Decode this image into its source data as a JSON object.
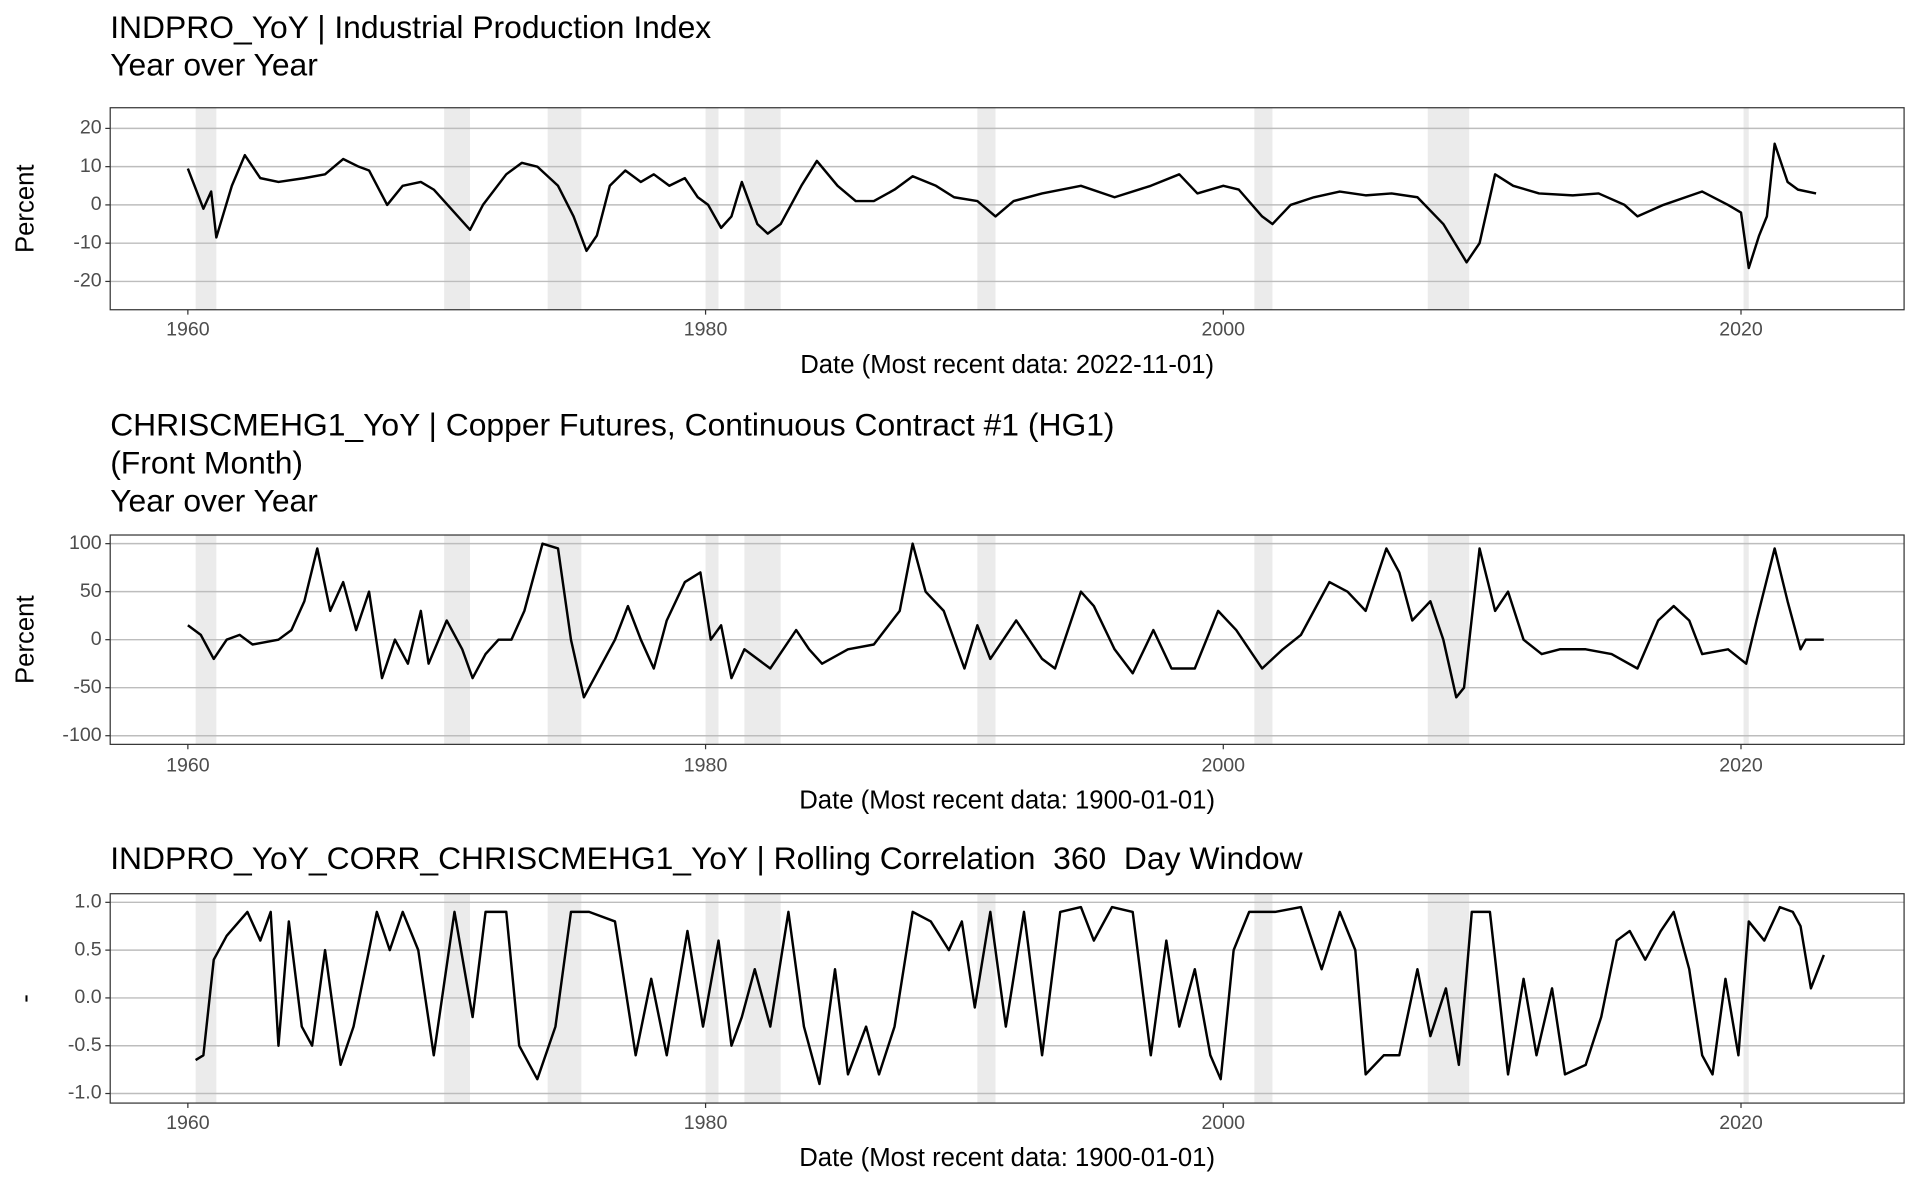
{
  "chart_data": [
    {
      "type": "line",
      "title": [
        "INDPRO_YoY | Industrial Production Index",
        "Year over Year"
      ],
      "xlabel": "Date (Most recent data: 2022-11-01)",
      "ylabel": "Percent",
      "color": "#000000",
      "shade_color": "#ebebeb",
      "grid": true,
      "xlim": [
        1957,
        2026.3
      ],
      "xticks": [
        1960,
        1980,
        2000,
        2020
      ],
      "ylim": [
        -27.4,
        25.4
      ],
      "yticks": [
        -20,
        -10,
        0,
        10,
        20
      ],
      "recessions": [
        [
          1960.3,
          1961.1
        ],
        [
          1969.9,
          1970.9
        ],
        [
          1973.9,
          1975.2
        ],
        [
          1980.0,
          1980.5
        ],
        [
          1981.5,
          1982.9
        ],
        [
          1990.5,
          1991.2
        ],
        [
          2001.2,
          2001.9
        ],
        [
          2007.9,
          2009.5
        ],
        [
          2020.1,
          2020.3
        ]
      ],
      "x": [
        1960,
        1960.6,
        1960.9,
        1961.1,
        1961.7,
        1962.2,
        1962.8,
        1963.5,
        1964.5,
        1965.3,
        1966.0,
        1966.6,
        1967.0,
        1967.7,
        1968.3,
        1969.0,
        1969.5,
        1970.3,
        1970.9,
        1971.4,
        1972.3,
        1972.9,
        1973.5,
        1974.3,
        1974.9,
        1975.4,
        1975.8,
        1976.3,
        1976.9,
        1977.5,
        1978.0,
        1978.6,
        1979.2,
        1979.7,
        1980.1,
        1980.6,
        1981.0,
        1981.4,
        1982.0,
        1982.4,
        1982.9,
        1983.7,
        1984.3,
        1985.1,
        1985.8,
        1986.5,
        1987.3,
        1988.0,
        1988.9,
        1989.6,
        1990.5,
        1991.2,
        1991.9,
        1993.0,
        1994.5,
        1995.8,
        1997.2,
        1998.3,
        1999.0,
        2000.0,
        2000.6,
        2001.5,
        2001.9,
        2002.6,
        2003.5,
        2004.5,
        2005.5,
        2006.5,
        2007.5,
        2008.5,
        2009.4,
        2009.9,
        2010.5,
        2011.2,
        2012.2,
        2013.5,
        2014.5,
        2015.5,
        2016.0,
        2017.0,
        2018.5,
        2019.5,
        2020.0,
        2020.3,
        2020.7,
        2021.0,
        2021.3,
        2021.8,
        2022.2,
        2022.9
      ],
      "values": [
        9.5,
        -1,
        3.5,
        -8.5,
        5,
        13,
        7,
        6,
        7,
        8,
        12,
        10,
        9,
        0,
        5,
        6,
        4,
        -2,
        -6.5,
        0,
        8,
        11,
        10,
        5,
        -3,
        -12,
        -8,
        5,
        9,
        6,
        8,
        5,
        7,
        2,
        0,
        -6,
        -3,
        6,
        -5,
        -7.5,
        -5,
        5,
        11.5,
        5,
        1,
        1,
        4,
        7.5,
        5,
        2,
        1,
        -3,
        1,
        3,
        5,
        2,
        5,
        8,
        3,
        5,
        4,
        -3,
        -5,
        0,
        2,
        3.5,
        2.5,
        3,
        2,
        -5,
        -15,
        -10,
        8,
        5,
        3,
        2.5,
        3,
        0,
        -3,
        0,
        3.5,
        0,
        -2,
        -16.5,
        -8,
        -3,
        16,
        6,
        4,
        3
      ]
    },
    {
      "type": "line",
      "title": [
        "CHRISCMEHG1_YoY | Copper Futures, Continuous Contract #1 (HG1)",
        "(Front Month)",
        "Year over Year"
      ],
      "xlabel": "Date (Most recent data: 1900-01-01)",
      "ylabel": "Percent",
      "color": "#000000",
      "shade_color": "#ebebeb",
      "grid": true,
      "xlim": [
        1957,
        2026.3
      ],
      "xticks": [
        1960,
        1980,
        2000,
        2020
      ],
      "ylim": [
        -109,
        109
      ],
      "yticks": [
        -100,
        -50,
        0,
        50,
        100
      ],
      "recessions": [
        [
          1960.3,
          1961.1
        ],
        [
          1969.9,
          1970.9
        ],
        [
          1973.9,
          1975.2
        ],
        [
          1980.0,
          1980.5
        ],
        [
          1981.5,
          1982.9
        ],
        [
          1990.5,
          1991.2
        ],
        [
          2001.2,
          2001.9
        ],
        [
          2007.9,
          2009.5
        ],
        [
          2020.1,
          2020.3
        ]
      ],
      "x": [
        1960,
        1960.5,
        1961,
        1961.5,
        1962,
        1962.5,
        1963.5,
        1964,
        1964.5,
        1965,
        1965.5,
        1966,
        1966.5,
        1967,
        1967.5,
        1968,
        1968.5,
        1969,
        1969.3,
        1970,
        1970.6,
        1971,
        1971.5,
        1972,
        1972.5,
        1973,
        1973.7,
        1974.3,
        1974.8,
        1975.3,
        1975.8,
        1976.5,
        1977,
        1977.5,
        1978,
        1978.5,
        1979.2,
        1979.8,
        1980.2,
        1980.6,
        1981.0,
        1981.5,
        1982.5,
        1983.5,
        1984,
        1984.5,
        1985.5,
        1986.5,
        1987.5,
        1988.0,
        1988.5,
        1989.2,
        1990,
        1990.5,
        1991,
        1992,
        1993,
        1993.5,
        1994.5,
        1995.0,
        1995.8,
        1996.5,
        1997.3,
        1998,
        1998.9,
        1999.8,
        2000.5,
        2001.5,
        2002.3,
        2003,
        2004.1,
        2004.8,
        2005.5,
        2006.3,
        2006.8,
        2007.3,
        2008.0,
        2008.5,
        2009.0,
        2009.3,
        2009.9,
        2010.5,
        2011.0,
        2011.6,
        2012.3,
        2013,
        2014,
        2015,
        2016,
        2016.8,
        2017.4,
        2018.0,
        2018.5,
        2019.5,
        2020.2,
        2020.6,
        2021.3,
        2021.8,
        2022.3,
        2022.5,
        2023.2
      ],
      "values": [
        15,
        5,
        -20,
        0,
        5,
        -5,
        0,
        10,
        40,
        95,
        30,
        60,
        10,
        50,
        -40,
        0,
        -25,
        30,
        -25,
        20,
        -10,
        -40,
        -15,
        0,
        0,
        30,
        100,
        95,
        0,
        -60,
        -35,
        0,
        35,
        0,
        -30,
        20,
        60,
        70,
        0,
        15,
        -40,
        -10,
        -30,
        10,
        -10,
        -25,
        -10,
        -5,
        30,
        100,
        50,
        30,
        -30,
        15,
        -20,
        20,
        -20,
        -30,
        50,
        35,
        -10,
        -35,
        10,
        -30,
        -30,
        30,
        10,
        -30,
        -10,
        5,
        60,
        50,
        30,
        95,
        70,
        20,
        40,
        0,
        -60,
        -50,
        95,
        30,
        50,
        0,
        -15,
        -10,
        -10,
        -15,
        -30,
        20,
        35,
        20,
        -15,
        -10,
        -25,
        20,
        95,
        40,
        -10,
        0,
        0
      ]
    },
    {
      "type": "line",
      "title": [
        "INDPRO_YoY_CORR_CHRISCMEHG1_YoY | Rolling Correlation  360  Day Window"
      ],
      "xlabel": "Date (Most recent data: 1900-01-01)",
      "ylabel": "-",
      "color": "#000000",
      "shade_color": "#ebebeb",
      "grid": true,
      "xlim": [
        1957,
        2026.3
      ],
      "xticks": [
        1960,
        1980,
        2000,
        2020
      ],
      "ylim": [
        -1.1,
        1.09
      ],
      "yticks": [
        {
          "value": -1,
          "label": "-1.0"
        },
        -0.5,
        {
          "value": 0,
          "label": "0.0"
        },
        0.5,
        {
          "value": 1,
          "label": "1.0"
        }
      ],
      "recessions": [
        [
          1960.3,
          1961.1
        ],
        [
          1969.9,
          1970.9
        ],
        [
          1973.9,
          1975.2
        ],
        [
          1980.0,
          1980.5
        ],
        [
          1981.5,
          1982.9
        ],
        [
          1990.5,
          1991.2
        ],
        [
          2001.2,
          2001.9
        ],
        [
          2007.9,
          2009.5
        ],
        [
          2020.1,
          2020.3
        ]
      ],
      "x": [
        1960.3,
        1960.6,
        1961.0,
        1961.5,
        1962.3,
        1962.8,
        1963.2,
        1963.5,
        1963.9,
        1964.4,
        1964.8,
        1965.3,
        1965.9,
        1966.4,
        1967.3,
        1967.8,
        1968.3,
        1968.9,
        1969.5,
        1970.3,
        1971.0,
        1971.5,
        1972.3,
        1972.8,
        1973.5,
        1974.2,
        1974.8,
        1975.5,
        1976.5,
        1977.3,
        1977.9,
        1978.5,
        1979.3,
        1979.9,
        1980.5,
        1981.0,
        1981.4,
        1981.9,
        1982.5,
        1983.2,
        1983.8,
        1984.4,
        1985.0,
        1985.5,
        1986.2,
        1986.7,
        1987.3,
        1988.0,
        1988.7,
        1989.4,
        1989.9,
        1990.4,
        1991.0,
        1991.6,
        1992.3,
        1993.0,
        1993.7,
        1994.5,
        1995.0,
        1995.7,
        1996.5,
        1997.2,
        1997.8,
        1998.3,
        1998.9,
        1999.5,
        1999.9,
        2000.4,
        2001.0,
        2002.0,
        2003.0,
        2003.8,
        2004.5,
        2005.1,
        2005.5,
        2006.2,
        2006.8,
        2007.5,
        2008.0,
        2008.6,
        2009.1,
        2009.6,
        2010.3,
        2011.0,
        2011.6,
        2012.1,
        2012.7,
        2013.2,
        2014.0,
        2014.6,
        2015.2,
        2015.7,
        2016.3,
        2016.9,
        2017.4,
        2018.0,
        2018.5,
        2018.9,
        2019.4,
        2019.9,
        2020.3,
        2020.9,
        2021.5,
        2022.0,
        2022.3,
        2022.7,
        2023.2
      ],
      "values": [
        -0.65,
        -0.6,
        0.4,
        0.65,
        0.9,
        0.6,
        0.9,
        -0.5,
        0.8,
        -0.3,
        -0.5,
        0.5,
        -0.7,
        -0.3,
        0.9,
        0.5,
        0.9,
        0.5,
        -0.6,
        0.9,
        -0.2,
        0.9,
        0.9,
        -0.5,
        -0.85,
        -0.3,
        0.9,
        0.9,
        0.8,
        -0.6,
        0.2,
        -0.6,
        0.7,
        -0.3,
        0.6,
        -0.5,
        -0.2,
        0.3,
        -0.3,
        0.9,
        -0.3,
        -0.9,
        0.3,
        -0.8,
        -0.3,
        -0.8,
        -0.3,
        0.9,
        0.8,
        0.5,
        0.8,
        -0.1,
        0.9,
        -0.3,
        0.9,
        -0.6,
        0.9,
        0.95,
        0.6,
        0.95,
        0.9,
        -0.6,
        0.6,
        -0.3,
        0.3,
        -0.6,
        -0.85,
        0.5,
        0.9,
        0.9,
        0.95,
        0.3,
        0.9,
        0.5,
        -0.8,
        -0.6,
        -0.6,
        0.3,
        -0.4,
        0.1,
        -0.7,
        0.9,
        0.9,
        -0.8,
        0.2,
        -0.6,
        0.1,
        -0.8,
        -0.7,
        -0.2,
        0.6,
        0.7,
        0.4,
        0.7,
        0.9,
        0.3,
        -0.6,
        -0.8,
        0.2,
        -0.6,
        0.8,
        0.6,
        0.95,
        0.9,
        0.75,
        0.1,
        0.45
      ]
    }
  ]
}
